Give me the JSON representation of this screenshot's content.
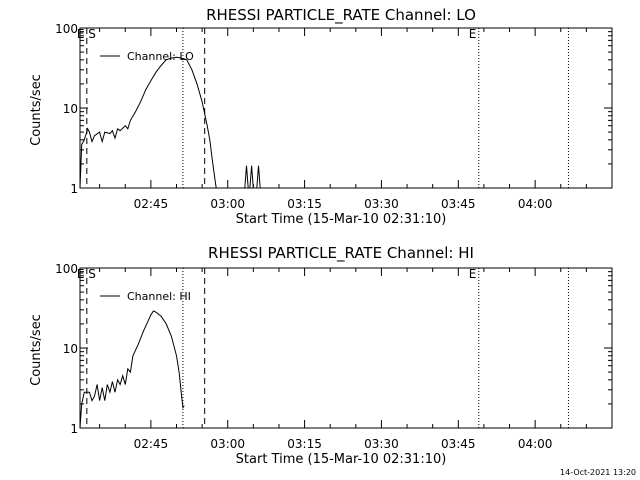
{
  "chart_data": [
    {
      "type": "line",
      "title": "RHESSI PARTICLE_RATE Channel: LO",
      "xlabel": "Start Time (15-Mar-10 02:31:10)",
      "ylabel": "Counts/sec",
      "yscale": "log",
      "ylim": [
        1,
        100
      ],
      "xlim": [
        "02:31:10",
        "04:15:00"
      ],
      "x_ticks": [
        "02:45",
        "03:00",
        "03:15",
        "03:30",
        "03:45",
        "04:00"
      ],
      "y_ticks": [
        "1",
        "10",
        "100"
      ],
      "legend": "top-left",
      "series": [
        {
          "name": "Channel: LO",
          "segments": [
            [
              [
                "02:31:10",
                1
              ],
              [
                "02:31:30",
                3.5
              ],
              [
                "02:32:00",
                4
              ],
              [
                "02:32:40",
                5.5
              ],
              [
                "02:33:00",
                5
              ],
              [
                "02:33:30",
                3.8
              ],
              [
                "02:34:00",
                4.5
              ],
              [
                "02:35:00",
                5
              ],
              [
                "02:35:30",
                3.8
              ],
              [
                "02:36:00",
                5
              ],
              [
                "02:37:00",
                4.8
              ],
              [
                "02:37:30",
                5.2
              ],
              [
                "02:38:00",
                4.2
              ],
              [
                "02:38:30",
                5.5
              ],
              [
                "02:39:00",
                5.2
              ],
              [
                "02:40:00",
                6
              ],
              [
                "02:40:30",
                5.5
              ],
              [
                "02:41:00",
                7
              ],
              [
                "02:42:00",
                9
              ],
              [
                "02:43:00",
                12
              ],
              [
                "02:44:00",
                17
              ],
              [
                "02:45:00",
                22
              ],
              [
                "02:46:00",
                28
              ],
              [
                "02:47:00",
                34
              ],
              [
                "02:48:00",
                40
              ],
              [
                "02:49:00",
                42
              ],
              [
                "02:50:00",
                43
              ],
              [
                "02:51:00",
                42
              ],
              [
                "02:52:00",
                40
              ],
              [
                "02:53:00",
                30
              ],
              [
                "02:54:00",
                20
              ],
              [
                "02:55:00",
                12
              ],
              [
                "02:56:00",
                6
              ],
              [
                "02:56:30",
                4
              ],
              [
                "02:57:00",
                2.2
              ],
              [
                "02:57:30",
                1.3
              ],
              [
                "02:57:45",
                1
              ]
            ],
            [
              [
                "03:03:20",
                1
              ],
              [
                "03:03:40",
                1.9
              ],
              [
                "03:04:00",
                1
              ]
            ],
            [
              [
                "03:04:20",
                1
              ],
              [
                "03:04:40",
                1.9
              ],
              [
                "03:05:00",
                1
              ]
            ],
            [
              [
                "03:05:40",
                1
              ],
              [
                "03:06:00",
                1.9
              ],
              [
                "03:06:20",
                1
              ]
            ]
          ]
        }
      ],
      "vlines": [
        {
          "x": "02:32:30",
          "style": "dashed",
          "label": "E S"
        },
        {
          "x": "02:51:15",
          "style": "dotted",
          "label": ""
        },
        {
          "x": "02:55:30",
          "style": "dashed",
          "label": ""
        },
        {
          "x": "03:49:00",
          "style": "dotted",
          "label": "E"
        },
        {
          "x": "04:06:30",
          "style": "dotted",
          "label": ""
        }
      ]
    },
    {
      "type": "line",
      "title": "RHESSI PARTICLE_RATE Channel: HI",
      "xlabel": "Start Time (15-Mar-10 02:31:10)",
      "ylabel": "Counts/sec",
      "yscale": "log",
      "ylim": [
        1,
        100
      ],
      "xlim": [
        "02:31:10",
        "04:15:00"
      ],
      "x_ticks": [
        "02:45",
        "03:00",
        "03:15",
        "03:30",
        "03:45",
        "04:00"
      ],
      "y_ticks": [
        "1",
        "10",
        "100"
      ],
      "legend": "top-left",
      "series": [
        {
          "name": "Channel: HI",
          "segments": [
            [
              [
                "02:31:10",
                1
              ],
              [
                "02:31:30",
                2
              ],
              [
                "02:32:00",
                2.8
              ],
              [
                "02:33:00",
                2.8
              ],
              [
                "02:33:30",
                2.2
              ],
              [
                "02:34:00",
                2.5
              ],
              [
                "02:34:30",
                3.5
              ],
              [
                "02:35:00",
                2.2
              ],
              [
                "02:35:30",
                3.2
              ],
              [
                "02:36:00",
                2.2
              ],
              [
                "02:36:30",
                3.5
              ],
              [
                "02:37:00",
                2.8
              ],
              [
                "02:37:30",
                3.8
              ],
              [
                "02:38:00",
                2.8
              ],
              [
                "02:38:30",
                4
              ],
              [
                "02:39:00",
                3.5
              ],
              [
                "02:39:30",
                4.5
              ],
              [
                "02:40:00",
                3.5
              ],
              [
                "02:40:30",
                5.5
              ],
              [
                "02:41:00",
                5
              ],
              [
                "02:41:30",
                8
              ],
              [
                "02:42:30",
                11
              ],
              [
                "02:43:30",
                16
              ],
              [
                "02:44:30",
                22
              ],
              [
                "02:45:00",
                26
              ],
              [
                "02:45:30",
                29
              ],
              [
                "02:46:00",
                28
              ],
              [
                "02:47:00",
                25
              ],
              [
                "02:48:00",
                20
              ],
              [
                "02:49:00",
                14
              ],
              [
                "02:50:00",
                8
              ],
              [
                "02:50:30",
                5
              ],
              [
                "02:51:00",
                2.5
              ],
              [
                "02:51:15",
                1.8
              ],
              [
                "02:51:30",
                1.9
              ]
            ]
          ]
        }
      ],
      "vlines": [
        {
          "x": "02:32:30",
          "style": "dashed",
          "label": "E S"
        },
        {
          "x": "02:51:15",
          "style": "dotted",
          "label": ""
        },
        {
          "x": "02:55:30",
          "style": "dashed",
          "label": ""
        },
        {
          "x": "03:49:00",
          "style": "dotted",
          "label": "E"
        },
        {
          "x": "04:06:30",
          "style": "dotted",
          "label": ""
        }
      ]
    }
  ],
  "footer": {
    "timestamp": "14-Oct-2021 13:20"
  }
}
